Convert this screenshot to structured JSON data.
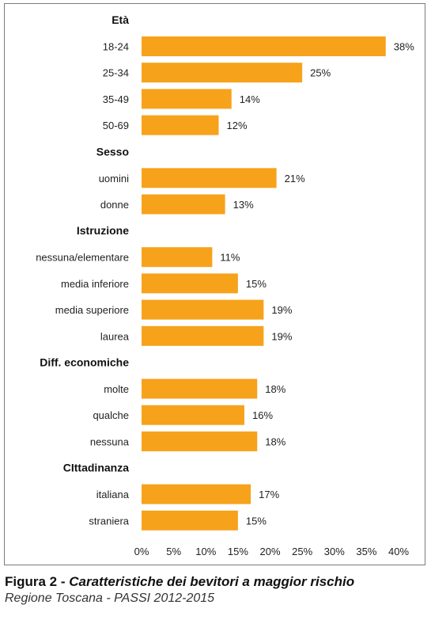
{
  "chart_data": {
    "type": "bar",
    "orientation": "horizontal",
    "bar_color": "#F7A21B",
    "xlim": [
      0,
      40
    ],
    "x_ticks": [
      "0%",
      "5%",
      "10%",
      "15%",
      "20%",
      "25%",
      "30%",
      "35%",
      "40%"
    ],
    "groups": [
      {
        "title": "Età",
        "categories": [
          "18-24",
          "25-34",
          "35-49",
          "50-69"
        ],
        "values": [
          38,
          25,
          14,
          12
        ],
        "labels": [
          "38%",
          "25%",
          "14%",
          "12%"
        ]
      },
      {
        "title": "Sesso",
        "categories": [
          "uomini",
          "donne"
        ],
        "values": [
          21,
          13
        ],
        "labels": [
          "21%",
          "13%"
        ]
      },
      {
        "title": "Istruzione",
        "categories": [
          "nessuna/elementare",
          "media inferiore",
          "media superiore",
          "laurea"
        ],
        "values": [
          11,
          15,
          19,
          19
        ],
        "labels": [
          "11%",
          "15%",
          "19%",
          "19%"
        ]
      },
      {
        "title": "Diff. economiche",
        "categories": [
          "molte",
          "qualche",
          "nessuna"
        ],
        "values": [
          18,
          16,
          18
        ],
        "labels": [
          "18%",
          "16%",
          "18%"
        ]
      },
      {
        "title": "CIttadinanza",
        "categories": [
          "italiana",
          "straniera"
        ],
        "values": [
          17,
          15
        ],
        "labels": [
          "17%",
          "15%"
        ]
      }
    ]
  },
  "caption": {
    "prefix": "Figura 2 - ",
    "title": "Caratteristiche dei bevitori a maggior rischio",
    "subtitle": "Regione Toscana - PASSI 2012-2015"
  }
}
